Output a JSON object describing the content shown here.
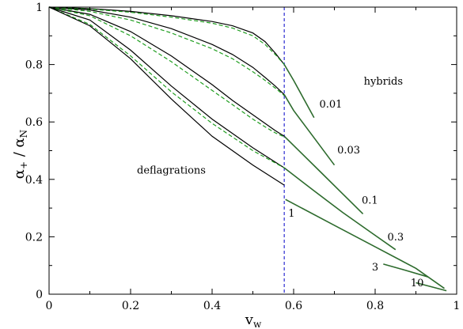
{
  "chart_data": {
    "type": "line",
    "title": "",
    "xlabel": "v",
    "xlabel_sub": "w",
    "ylabel": "α",
    "ylabel_sub1": "+",
    "ylabel_mid": " / α",
    "ylabel_sub2": "N",
    "xlim": [
      0,
      1
    ],
    "ylim": [
      0,
      1
    ],
    "x_ticks": [
      0,
      0.2,
      0.4,
      0.6,
      0.8,
      1
    ],
    "y_ticks": [
      0,
      0.2,
      0.4,
      0.6,
      0.8,
      1
    ],
    "x_tick_labels": [
      "0",
      "0.2",
      "0.4",
      "0.6",
      "0.8",
      "1"
    ],
    "y_tick_labels": [
      "0",
      "0.2",
      "0.4",
      "0.6",
      "0.8",
      "1"
    ],
    "grid": false,
    "colors": {
      "exact": "#000000",
      "approx": "#1f9e1f",
      "hybrid_branch": "#2d6b2d",
      "boundary": "#2a2ad0"
    },
    "boundary_line": {
      "x": 0.577
    },
    "region_labels": [
      {
        "text": "deflagrations",
        "x": 0.3,
        "y": 0.42
      },
      {
        "text": "hybrids",
        "x": 0.82,
        "y": 0.73
      }
    ],
    "series": [
      {
        "label": "0.01",
        "label_pos": [
          0.663,
          0.65
        ],
        "exact": {
          "x": [
            0,
            0.1,
            0.2,
            0.3,
            0.4,
            0.45,
            0.5,
            0.53,
            0.555,
            0.577
          ],
          "y": [
            1,
            0.995,
            0.985,
            0.97,
            0.95,
            0.935,
            0.91,
            0.88,
            0.84,
            0.8
          ]
        },
        "approx": {
          "x": [
            0,
            0.1,
            0.2,
            0.3,
            0.4,
            0.45,
            0.5,
            0.53,
            0.555,
            0.577
          ],
          "y": [
            1,
            0.993,
            0.982,
            0.965,
            0.944,
            0.927,
            0.9,
            0.87,
            0.835,
            0.8
          ]
        },
        "hybrid": {
          "x": [
            0.577,
            0.6,
            0.625,
            0.65
          ],
          "y": [
            0.8,
            0.745,
            0.68,
            0.615
          ]
        }
      },
      {
        "label": "0.03",
        "label_pos": [
          0.707,
          0.49
        ],
        "exact": {
          "x": [
            0,
            0.1,
            0.2,
            0.3,
            0.4,
            0.45,
            0.5,
            0.53,
            0.555,
            0.577
          ],
          "y": [
            1,
            0.99,
            0.965,
            0.925,
            0.87,
            0.835,
            0.79,
            0.755,
            0.725,
            0.695
          ]
        },
        "approx": {
          "x": [
            0,
            0.1,
            0.2,
            0.3,
            0.4,
            0.45,
            0.5,
            0.53,
            0.555,
            0.577
          ],
          "y": [
            1,
            0.985,
            0.955,
            0.91,
            0.855,
            0.82,
            0.775,
            0.745,
            0.718,
            0.692
          ]
        },
        "hybrid": {
          "x": [
            0.577,
            0.6,
            0.65,
            0.7
          ],
          "y": [
            0.695,
            0.64,
            0.545,
            0.45
          ]
        }
      },
      {
        "label": "0.1",
        "label_pos": [
          0.767,
          0.315
        ],
        "exact": {
          "x": [
            0,
            0.1,
            0.2,
            0.3,
            0.4,
            0.45,
            0.5,
            0.53,
            0.555,
            0.577
          ],
          "y": [
            1,
            0.975,
            0.915,
            0.83,
            0.73,
            0.675,
            0.625,
            0.595,
            0.57,
            0.55
          ]
        },
        "approx": {
          "x": [
            0,
            0.1,
            0.2,
            0.3,
            0.4,
            0.45,
            0.5,
            0.53,
            0.555,
            0.577
          ],
          "y": [
            1,
            0.97,
            0.9,
            0.81,
            0.71,
            0.66,
            0.61,
            0.583,
            0.562,
            0.548
          ]
        },
        "hybrid": {
          "x": [
            0.577,
            0.62,
            0.67,
            0.72,
            0.77
          ],
          "y": [
            0.55,
            0.49,
            0.42,
            0.35,
            0.28
          ]
        }
      },
      {
        "label": "0.3",
        "label_pos": [
          0.83,
          0.188
        ],
        "exact": {
          "x": [
            0,
            0.1,
            0.2,
            0.3,
            0.4,
            0.5,
            0.577
          ],
          "y": [
            1,
            0.955,
            0.85,
            0.725,
            0.61,
            0.51,
            0.44
          ]
        },
        "approx": {
          "x": [
            0,
            0.1,
            0.2,
            0.3,
            0.4,
            0.5,
            0.577
          ],
          "y": [
            1,
            0.94,
            0.83,
            0.705,
            0.595,
            0.5,
            0.44
          ]
        },
        "hybrid": {
          "x": [
            0.577,
            0.65,
            0.72,
            0.79,
            0.85
          ],
          "y": [
            0.44,
            0.36,
            0.285,
            0.215,
            0.155
          ]
        }
      },
      {
        "label": "1",
        "label_pos": [
          0.587,
          0.27
        ],
        "exact": {
          "x": [
            0,
            0.1,
            0.2,
            0.3,
            0.4,
            0.5,
            0.577
          ],
          "y": [
            1,
            0.935,
            0.82,
            0.68,
            0.55,
            0.45,
            0.38
          ]
        },
        "approx": {
          "x": [],
          "y": []
        },
        "hybrid": {
          "x": [
            0.58,
            0.7,
            0.8,
            0.9,
            0.97
          ],
          "y": [
            0.33,
            0.24,
            0.165,
            0.09,
            0.02
          ]
        }
      },
      {
        "label": "3",
        "label_pos": [
          0.792,
          0.083
        ],
        "exact": {
          "x": [],
          "y": []
        },
        "approx": {
          "x": [],
          "y": []
        },
        "hybrid": {
          "x": [
            0.82,
            0.87,
            0.93
          ],
          "y": [
            0.105,
            0.085,
            0.06
          ]
        }
      },
      {
        "label": "10",
        "label_pos": [
          0.887,
          0.027
        ],
        "exact": {
          "x": [],
          "y": []
        },
        "approx": {
          "x": [],
          "y": []
        },
        "hybrid": {
          "x": [
            0.9,
            0.94,
            0.975
          ],
          "y": [
            0.04,
            0.025,
            0.012
          ]
        }
      }
    ]
  }
}
